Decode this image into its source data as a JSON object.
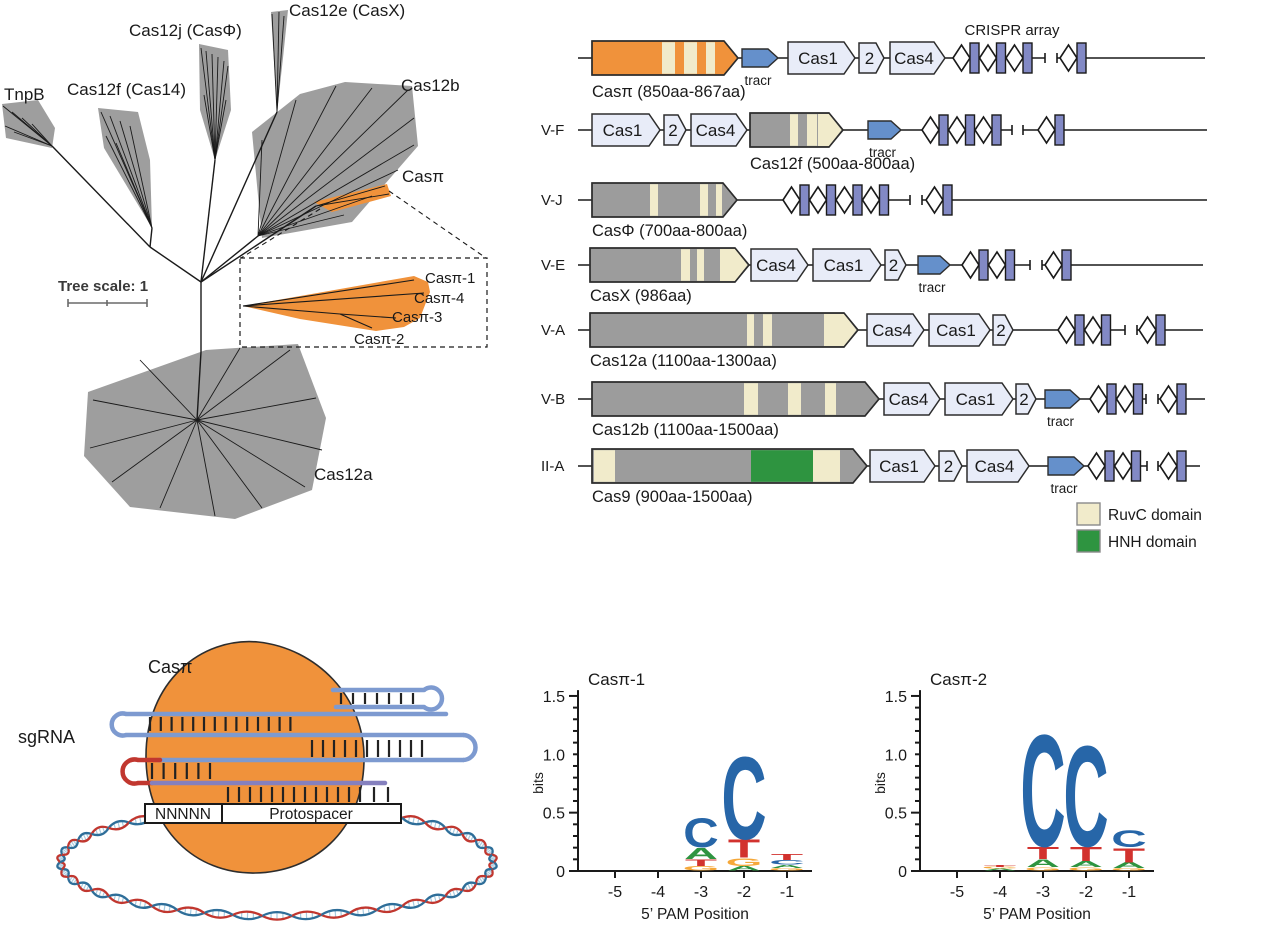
{
  "tree": {
    "scale_label": "Tree scale: 1",
    "clades": [
      {
        "label": "TnpB"
      },
      {
        "label": "Cas12f (Cas14)"
      },
      {
        "label": "Cas12j (CasΦ)"
      },
      {
        "label": "Cas12e (CasX)"
      },
      {
        "label": "Cas12b"
      },
      {
        "label": "Casπ"
      },
      {
        "label": "Cas12a"
      }
    ],
    "inset_clades": [
      {
        "label": "Casπ-1"
      },
      {
        "label": "Casπ-4"
      },
      {
        "label": "Casπ-3"
      },
      {
        "label": "Casπ-2"
      }
    ],
    "colors": {
      "clade_fill": "#9E9E9E",
      "highlight": "#F0923B"
    }
  },
  "loci": {
    "array_label": "CRISPR array",
    "tracr_label": "tracr",
    "gene_names": {
      "cas1": "Cas1",
      "cas2": "2",
      "cas4": "Cas4"
    },
    "legend": [
      {
        "label": "RuvC domain",
        "color": "#F1EBCB"
      },
      {
        "label": "HNH domain",
        "color": "#2E9440"
      }
    ],
    "rows": [
      {
        "type_label": "",
        "effector_label": "Casπ (850aa-867aa)"
      },
      {
        "type_label": "V-F",
        "effector_label": "Cas12f (500aa-800aa)"
      },
      {
        "type_label": "V-J",
        "effector_label": "CasΦ (700aa-800aa)"
      },
      {
        "type_label": "V-E",
        "effector_label": "CasX (986aa)"
      },
      {
        "type_label": "V-A",
        "effector_label": "Cas12a (1100aa-1300aa)"
      },
      {
        "type_label": "V-B",
        "effector_label": "Cas12b (1100aa-1500aa)"
      },
      {
        "type_label": "II-A",
        "effector_label": "Cas9 (900aa-1500aa)"
      }
    ],
    "colors": {
      "effector_orange": "#F0923B",
      "effector_gray": "#9C9C9C",
      "ruvc": "#F1EBCB",
      "hnh": "#2E9440",
      "acq_gene": "#E8ECF8",
      "tracr": "#6590CB",
      "repeat": "#8289C5"
    }
  },
  "mechanism": {
    "protein_label": "Casπ",
    "sgrna_label": "sgRNA",
    "pam_box_label": "NNNNN",
    "protospacer_label": "Protospacer"
  },
  "chart_data": [
    {
      "type": "logo",
      "title": "Casπ-1",
      "ylabel": "bits",
      "xlabel": "5’ PAM Position",
      "ylim": [
        0,
        1.5
      ],
      "yticks": [
        "0",
        "0.5",
        "1.0",
        "1.5"
      ],
      "positions": [
        "-5",
        "-4",
        "-3",
        "-2",
        "-1"
      ],
      "stacks": {
        "-5": [],
        "-4": [],
        "-3": [
          [
            "G",
            0.04
          ],
          [
            "T",
            0.06
          ],
          [
            "A",
            0.1
          ],
          [
            "C",
            0.26
          ]
        ],
        "-2": [
          [
            "A",
            0.04
          ],
          [
            "G",
            0.07
          ],
          [
            "T",
            0.16
          ],
          [
            "C",
            0.74
          ]
        ],
        "-1": [
          [
            "G",
            0.02
          ],
          [
            "A",
            0.03
          ],
          [
            "C",
            0.04
          ],
          [
            "T",
            0.05
          ]
        ]
      },
      "base_colors": {
        "A": "#2E9440",
        "C": "#2766A8",
        "G": "#F5A83A",
        "T": "#D2322E"
      }
    },
    {
      "type": "logo",
      "title": "Casπ-2",
      "ylabel": "bits",
      "xlabel": "5’ PAM Position",
      "ylim": [
        0,
        1.5
      ],
      "yticks": [
        "0",
        "0.5",
        "1.0",
        "1.5"
      ],
      "positions": [
        "-5",
        "-4",
        "-3",
        "-2",
        "-1"
      ],
      "stacks": {
        "-5": [],
        "-4": [
          [
            "A",
            0.015
          ],
          [
            "G",
            0.015
          ],
          [
            "T",
            0.015
          ]
        ],
        "-3": [
          [
            "G",
            0.03
          ],
          [
            "A",
            0.07
          ],
          [
            "T",
            0.11
          ],
          [
            "C",
            1.0
          ]
        ],
        "-2": [
          [
            "G",
            0.03
          ],
          [
            "A",
            0.05
          ],
          [
            "T",
            0.13
          ],
          [
            "C",
            0.9
          ]
        ],
        "-1": [
          [
            "G",
            0.02
          ],
          [
            "A",
            0.05
          ],
          [
            "T",
            0.13
          ],
          [
            "C",
            0.15
          ]
        ]
      },
      "base_colors": {
        "A": "#2E9440",
        "C": "#2766A8",
        "G": "#F5A83A",
        "T": "#D2322E"
      }
    }
  ]
}
